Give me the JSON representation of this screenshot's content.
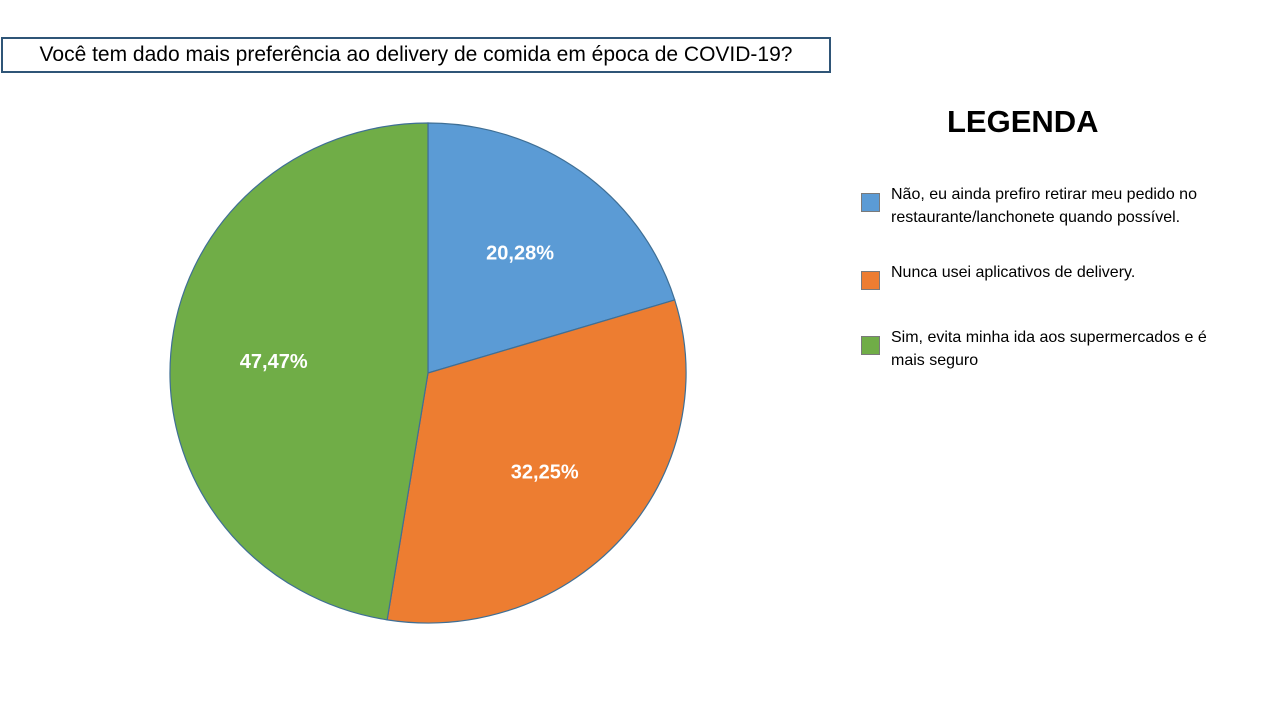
{
  "chart_data": {
    "type": "pie",
    "title": "Você tem dado mais preferência ao delivery de comida em época de COVID-19?",
    "legend_title": "LEGENDA",
    "legend_position": "right",
    "slices": [
      {
        "label": "Não, eu ainda prefiro retirar meu pedido no restaurante/lanchonete quando possível.",
        "value": 20.28,
        "display": "20,28%",
        "color": "#5b9bd5"
      },
      {
        "label": "Nunca usei aplicativos de delivery.",
        "value": 32.25,
        "display": "32,25%",
        "color": "#ed7d31"
      },
      {
        "label": "Sim, evita minha ida aos supermercados e é mais seguro",
        "value": 47.47,
        "display": "47,47%",
        "color": "#70ad47"
      }
    ]
  }
}
